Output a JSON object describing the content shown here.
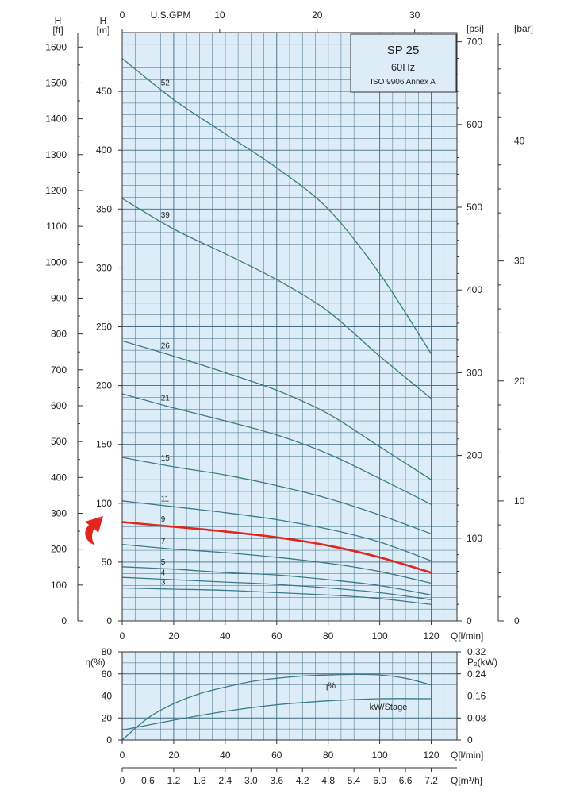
{
  "colors": {
    "plot_bg": "#dcedf7",
    "grid": "#3f6a80",
    "curve": "#3b7a8c",
    "highlight": "#e0261e",
    "axis": "#333333",
    "arrow": "#e0261e"
  },
  "chart_data": [
    {
      "type": "line",
      "title": "SP 25",
      "subtitle_lines": [
        "60Hz",
        "ISO 9906 Annex A"
      ],
      "x_label": "Q[l/min]",
      "x_range": [
        0,
        130
      ],
      "x_ticks": [
        0,
        20,
        40,
        60,
        80,
        100,
        120
      ],
      "top_axis_label": "U.S.GPM",
      "top_ticks": [
        0,
        10,
        20,
        30
      ],
      "left_axis_ft_units": [
        "H",
        "[ft]"
      ],
      "left_axis_ft_ticks": [
        0,
        100,
        200,
        300,
        400,
        500,
        600,
        700,
        800,
        900,
        1000,
        1100,
        1200,
        1300,
        1400,
        1500,
        1600
      ],
      "left_axis_m_units": [
        "H",
        "[m]"
      ],
      "left_axis_m_ticks": [
        0,
        50,
        100,
        150,
        200,
        250,
        300,
        350,
        400,
        450
      ],
      "y_range_m": [
        0,
        500
      ],
      "right_axis_psi_unit": "[psi]",
      "right_axis_psi_ticks": [
        0,
        100,
        200,
        300,
        400,
        500,
        600,
        700
      ],
      "right_axis_bar_unit": "[bar]",
      "right_axis_bar_ticks": [
        0,
        10,
        20,
        30,
        40
      ],
      "grid": true,
      "highlight_curve": "9",
      "series": [
        {
          "name": "52",
          "x": [
            0,
            20,
            40,
            60,
            80,
            100,
            120
          ],
          "y": [
            478,
            443,
            414,
            385,
            350,
            295,
            227
          ]
        },
        {
          "name": "39",
          "x": [
            0,
            20,
            40,
            60,
            80,
            100,
            120
          ],
          "y": [
            359,
            333,
            312,
            290,
            263,
            225,
            189
          ]
        },
        {
          "name": "26",
          "x": [
            0,
            20,
            40,
            60,
            80,
            100,
            120
          ],
          "y": [
            238,
            225,
            211,
            196,
            176,
            148,
            120
          ]
        },
        {
          "name": "21",
          "x": [
            0,
            20,
            40,
            60,
            80,
            100,
            120
          ],
          "y": [
            193,
            181,
            170,
            158,
            142,
            121,
            99
          ]
        },
        {
          "name": "15",
          "x": [
            0,
            20,
            40,
            60,
            80,
            100,
            120
          ],
          "y": [
            139,
            131,
            124,
            115,
            104,
            90,
            74
          ]
        },
        {
          "name": "11",
          "x": [
            0,
            20,
            40,
            60,
            80,
            100,
            120
          ],
          "y": [
            102,
            97,
            92,
            86,
            78,
            67,
            51
          ]
        },
        {
          "name": "9",
          "x": [
            0,
            20,
            40,
            60,
            80,
            100,
            120
          ],
          "y": [
            84,
            80,
            76,
            71,
            64,
            54,
            41
          ]
        },
        {
          "name": "7",
          "x": [
            0,
            20,
            40,
            60,
            80,
            100,
            120
          ],
          "y": [
            65,
            61,
            58,
            54,
            49,
            42,
            32
          ]
        },
        {
          "name": "5",
          "x": [
            0,
            20,
            40,
            60,
            80,
            100,
            120
          ],
          "y": [
            46,
            44,
            41,
            39,
            35,
            30,
            22
          ]
        },
        {
          "name": "4",
          "x": [
            0,
            20,
            40,
            60,
            80,
            100,
            120
          ],
          "y": [
            37,
            35,
            33,
            31,
            28,
            24,
            18
          ]
        },
        {
          "name": "3",
          "x": [
            0,
            20,
            40,
            60,
            80,
            100,
            120
          ],
          "y": [
            28,
            27,
            26,
            24,
            22,
            19,
            14
          ]
        }
      ]
    },
    {
      "type": "line",
      "x_label": "Q[l/min]",
      "x_range": [
        0,
        130
      ],
      "x_ticks": [
        0,
        20,
        40,
        60,
        80,
        100,
        120
      ],
      "bottom_axis_label": "Q[m³/h]",
      "bottom_ticks": [
        "0",
        "0.6",
        "1.2",
        "1.8",
        "2.4",
        "3.0",
        "3.6",
        "4.2",
        "4.8",
        "5.4",
        "6.0",
        "6.6",
        "7.2"
      ],
      "left_axis_label": "η(%)",
      "left_ticks": [
        0,
        20,
        40,
        60,
        80
      ],
      "y_range": [
        0,
        80
      ],
      "right_axis_label": "P₂(kW)",
      "right_ticks": [
        "0",
        "0.08",
        "0.16",
        "0.24",
        "0.32"
      ],
      "grid": true,
      "series": [
        {
          "name": "η%",
          "x": [
            0,
            10,
            20,
            30,
            40,
            50,
            60,
            70,
            80,
            90,
            100,
            110,
            120
          ],
          "y": [
            0,
            20,
            33,
            42,
            48,
            53,
            56,
            58,
            59,
            59.5,
            59,
            56,
            50
          ]
        },
        {
          "name": "kW/Stage",
          "x": [
            0,
            20,
            40,
            60,
            80,
            100,
            120
          ],
          "y": [
            9,
            18,
            26,
            32,
            35.5,
            37.5,
            37.5
          ]
        }
      ]
    }
  ]
}
